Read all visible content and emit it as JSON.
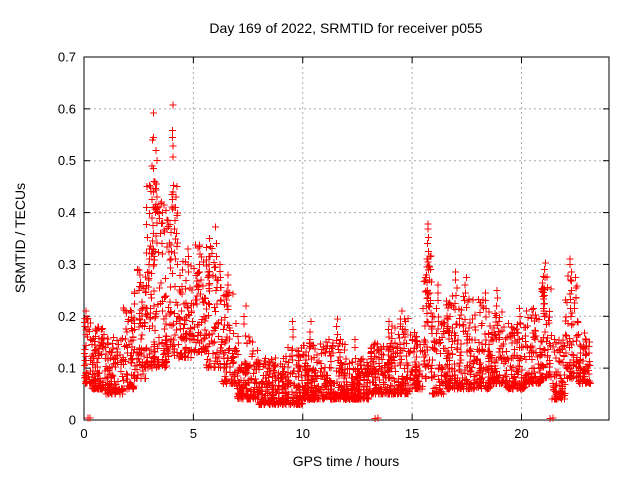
{
  "chart_data": {
    "type": "scatter",
    "title": "Day 169 of 2022, SRMTID for receiver p055",
    "xlabel": "GPS time / hours",
    "ylabel": "SRMTID / TECUs",
    "xlim": [
      0,
      24
    ],
    "ylim": [
      0,
      0.7
    ],
    "xticks": {
      "values": [
        0,
        5,
        10,
        15,
        20
      ],
      "labels": [
        "0",
        "5",
        "10",
        "15",
        "20"
      ]
    },
    "yticks": {
      "values": [
        0,
        0.1,
        0.2,
        0.3,
        0.4,
        0.5,
        0.6,
        0.7
      ],
      "labels": [
        "0",
        "0.1",
        "0.2",
        "0.3",
        "0.4",
        "0.5",
        "0.6",
        "0.7"
      ]
    },
    "grid": {
      "show": true,
      "color": "#a8a8a8",
      "dash": "2 3"
    },
    "frame_color": "#000000",
    "background": "#ffffff",
    "legend": "none",
    "marker": {
      "shape": "plus",
      "color": "#ff0000",
      "size": 7
    },
    "series_name": "SRMTID",
    "representation": "binned-envelope-read-from-pixels",
    "density_bins": [
      {
        "x0": 0.0,
        "x1": 0.3,
        "n": 40,
        "lo": 0.07,
        "hi": 0.2,
        "pw": 1.8
      },
      {
        "x0": 0.3,
        "x1": 1.0,
        "n": 100,
        "lo": 0.06,
        "hi": 0.18,
        "pw": 2.0
      },
      {
        "x0": 1.0,
        "x1": 1.8,
        "n": 110,
        "lo": 0.05,
        "hi": 0.16,
        "pw": 2.0
      },
      {
        "x0": 1.8,
        "x1": 2.3,
        "n": 60,
        "lo": 0.06,
        "hi": 0.22,
        "pw": 1.9
      },
      {
        "x0": 2.3,
        "x1": 2.8,
        "n": 65,
        "lo": 0.08,
        "hi": 0.3,
        "pw": 1.9
      },
      {
        "x0": 2.8,
        "x1": 3.3,
        "n": 75,
        "lo": 0.1,
        "hi": 0.46,
        "pw": 1.7
      },
      {
        "x0": 3.3,
        "x1": 3.8,
        "n": 70,
        "lo": 0.1,
        "hi": 0.42,
        "pw": 1.8
      },
      {
        "x0": 3.8,
        "x1": 4.3,
        "n": 55,
        "lo": 0.12,
        "hi": 0.47,
        "pw": 1.7
      },
      {
        "x0": 4.3,
        "x1": 5.0,
        "n": 80,
        "lo": 0.12,
        "hi": 0.33,
        "pw": 1.9
      },
      {
        "x0": 5.0,
        "x1": 5.6,
        "n": 65,
        "lo": 0.13,
        "hi": 0.34,
        "pw": 1.8
      },
      {
        "x0": 5.6,
        "x1": 6.3,
        "n": 75,
        "lo": 0.1,
        "hi": 0.35,
        "pw": 1.8
      },
      {
        "x0": 6.3,
        "x1": 7.0,
        "n": 80,
        "lo": 0.07,
        "hi": 0.25,
        "pw": 1.9
      },
      {
        "x0": 7.0,
        "x1": 8.0,
        "n": 130,
        "lo": 0.04,
        "hi": 0.17,
        "pw": 2.1
      },
      {
        "x0": 8.0,
        "x1": 9.0,
        "n": 145,
        "lo": 0.03,
        "hi": 0.12,
        "pw": 2.1
      },
      {
        "x0": 9.0,
        "x1": 10.0,
        "n": 145,
        "lo": 0.03,
        "hi": 0.14,
        "pw": 2.1
      },
      {
        "x0": 10.0,
        "x1": 11.0,
        "n": 155,
        "lo": 0.04,
        "hi": 0.15,
        "pw": 2.1
      },
      {
        "x0": 11.0,
        "x1": 12.0,
        "n": 155,
        "lo": 0.04,
        "hi": 0.16,
        "pw": 2.1
      },
      {
        "x0": 12.0,
        "x1": 13.0,
        "n": 150,
        "lo": 0.04,
        "hi": 0.12,
        "pw": 2.1
      },
      {
        "x0": 13.0,
        "x1": 14.0,
        "n": 140,
        "lo": 0.05,
        "hi": 0.15,
        "pw": 2.1
      },
      {
        "x0": 14.0,
        "x1": 14.9,
        "n": 115,
        "lo": 0.05,
        "hi": 0.2,
        "pw": 2.0
      },
      {
        "x0": 14.9,
        "x1": 15.5,
        "n": 70,
        "lo": 0.06,
        "hi": 0.17,
        "pw": 2.0
      },
      {
        "x0": 15.5,
        "x1": 15.9,
        "n": 45,
        "lo": 0.08,
        "hi": 0.33,
        "pw": 1.5
      },
      {
        "x0": 15.9,
        "x1": 16.5,
        "n": 70,
        "lo": 0.05,
        "hi": 0.2,
        "pw": 2.0
      },
      {
        "x0": 16.5,
        "x1": 17.5,
        "n": 135,
        "lo": 0.06,
        "hi": 0.24,
        "pw": 2.0
      },
      {
        "x0": 17.5,
        "x1": 18.6,
        "n": 145,
        "lo": 0.06,
        "hi": 0.24,
        "pw": 2.0
      },
      {
        "x0": 18.6,
        "x1": 19.3,
        "n": 90,
        "lo": 0.07,
        "hi": 0.23,
        "pw": 1.9
      },
      {
        "x0": 19.3,
        "x1": 20.2,
        "n": 110,
        "lo": 0.06,
        "hi": 0.19,
        "pw": 2.0
      },
      {
        "x0": 20.2,
        "x1": 20.9,
        "n": 90,
        "lo": 0.07,
        "hi": 0.22,
        "pw": 1.9
      },
      {
        "x0": 20.9,
        "x1": 21.4,
        "n": 60,
        "lo": 0.08,
        "hi": 0.28,
        "pw": 1.7
      },
      {
        "x0": 21.4,
        "x1": 22.0,
        "n": 75,
        "lo": 0.04,
        "hi": 0.16,
        "pw": 2.0
      },
      {
        "x0": 22.0,
        "x1": 22.6,
        "n": 65,
        "lo": 0.08,
        "hi": 0.28,
        "pw": 1.7
      },
      {
        "x0": 22.6,
        "x1": 23.15,
        "n": 75,
        "lo": 0.07,
        "hi": 0.17,
        "pw": 2.0
      }
    ],
    "peak_columns": [
      {
        "x": 0.1,
        "ys": [
          0.21,
          0.195,
          0.18,
          0.165
        ]
      },
      {
        "x": 2.55,
        "ys": [
          0.28,
          0.265,
          0.25
        ]
      },
      {
        "x": 2.95,
        "ys": [
          0.33,
          0.31,
          0.3,
          0.285,
          0.27
        ]
      },
      {
        "x": 3.15,
        "ys": [
          0.592,
          0.545,
          0.54,
          0.49,
          0.485,
          0.46,
          0.44,
          0.425,
          0.41,
          0.39,
          0.375,
          0.36,
          0.345,
          0.33,
          0.315,
          0.3
        ]
      },
      {
        "x": 3.3,
        "ys": [
          0.52,
          0.5,
          0.455,
          0.43,
          0.4,
          0.38,
          0.355
        ]
      },
      {
        "x": 3.55,
        "ys": [
          0.42,
          0.4,
          0.38,
          0.36,
          0.34,
          0.32
        ]
      },
      {
        "x": 4.05,
        "ys": [
          0.607,
          0.558,
          0.545,
          0.528,
          0.507,
          0.452,
          0.44,
          0.425
        ]
      },
      {
        "x": 4.2,
        "ys": [
          0.45,
          0.43,
          0.41,
          0.385,
          0.36,
          0.335,
          0.31
        ]
      },
      {
        "x": 4.75,
        "ys": [
          0.33,
          0.315,
          0.3,
          0.285
        ]
      },
      {
        "x": 5.3,
        "ys": [
          0.335,
          0.32,
          0.3,
          0.285,
          0.27
        ]
      },
      {
        "x": 5.75,
        "ys": [
          0.35,
          0.335,
          0.315,
          0.3,
          0.28,
          0.26
        ]
      },
      {
        "x": 6.05,
        "ys": [
          0.372,
          0.34,
          0.315,
          0.295,
          0.27,
          0.25
        ]
      },
      {
        "x": 6.55,
        "ys": [
          0.28,
          0.26,
          0.24,
          0.22
        ]
      },
      {
        "x": 7.35,
        "ys": [
          0.22,
          0.2,
          0.185
        ]
      },
      {
        "x": 9.55,
        "ys": [
          0.19,
          0.175,
          0.16
        ]
      },
      {
        "x": 10.35,
        "ys": [
          0.19,
          0.17,
          0.155
        ]
      },
      {
        "x": 11.55,
        "ys": [
          0.195,
          0.18,
          0.165
        ]
      },
      {
        "x": 12.4,
        "ys": [
          0.155,
          0.14
        ]
      },
      {
        "x": 13.9,
        "ys": [
          0.19,
          0.175,
          0.16
        ]
      },
      {
        "x": 14.5,
        "ys": [
          0.21,
          0.195,
          0.18
        ]
      },
      {
        "x": 15.7,
        "ys": [
          0.378,
          0.368,
          0.352,
          0.34,
          0.325,
          0.31,
          0.295,
          0.28,
          0.265,
          0.25,
          0.235,
          0.22,
          0.205,
          0.19
        ]
      },
      {
        "x": 15.78,
        "ys": [
          0.315,
          0.295,
          0.27,
          0.245,
          0.22
        ]
      },
      {
        "x": 16.15,
        "ys": [
          0.26,
          0.245,
          0.23,
          0.215
        ]
      },
      {
        "x": 17.0,
        "ys": [
          0.285,
          0.27,
          0.255,
          0.24,
          0.225
        ]
      },
      {
        "x": 17.45,
        "ys": [
          0.275,
          0.26,
          0.245,
          0.23
        ]
      },
      {
        "x": 18.35,
        "ys": [
          0.245,
          0.23,
          0.215
        ]
      },
      {
        "x": 18.9,
        "ys": [
          0.25,
          0.235,
          0.22
        ]
      },
      {
        "x": 19.95,
        "ys": [
          0.215,
          0.2,
          0.185
        ]
      },
      {
        "x": 21.05,
        "ys": [
          0.303,
          0.29,
          0.275,
          0.255,
          0.24,
          0.225,
          0.21
        ]
      },
      {
        "x": 22.25,
        "ys": [
          0.31,
          0.3,
          0.285,
          0.268,
          0.25,
          0.232,
          0.215
        ]
      },
      {
        "x": 22.45,
        "ys": [
          0.275,
          0.255,
          0.235,
          0.215
        ]
      }
    ],
    "zero_points": [
      [
        0.18,
        0.004
      ],
      [
        0.28,
        0.004
      ],
      [
        13.3,
        0.003
      ],
      [
        13.45,
        0.004
      ],
      [
        21.3,
        0.003
      ],
      [
        21.45,
        0.004
      ]
    ]
  }
}
